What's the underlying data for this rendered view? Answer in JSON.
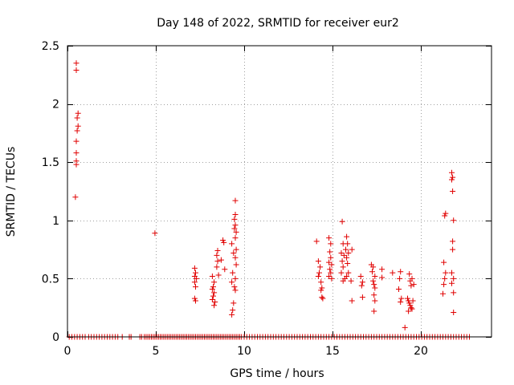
{
  "chart_data": {
    "type": "scatter",
    "title": "Day 148 of 2022, SRMTID for receiver eur2",
    "xlabel": "GPS time / hours",
    "ylabel": "SRMTID / TECUs",
    "xlim": [
      0,
      24
    ],
    "ylim": [
      0,
      2.5
    ],
    "x_ticks": [
      0,
      5,
      10,
      15,
      20
    ],
    "y_ticks": [
      0,
      0.5,
      1,
      1.5,
      2,
      2.5
    ],
    "x_tick_labels": [
      "0",
      "5",
      "10",
      "15",
      "20"
    ],
    "y_tick_labels": [
      "0",
      "0.5",
      "1",
      "1.5",
      "2",
      "2.5"
    ],
    "grid": true,
    "marker": "+",
    "series": [
      {
        "name": "eur2",
        "color": "#e00000",
        "nonzero_points": [
          [
            0.5,
            2.35
          ],
          [
            0.5,
            2.29
          ],
          [
            0.6,
            1.92
          ],
          [
            0.55,
            1.88
          ],
          [
            0.6,
            1.81
          ],
          [
            0.55,
            1.77
          ],
          [
            0.5,
            1.68
          ],
          [
            0.5,
            1.58
          ],
          [
            0.5,
            1.51
          ],
          [
            0.5,
            1.48
          ],
          [
            0.45,
            1.2
          ],
          [
            4.95,
            0.89
          ],
          [
            7.2,
            0.59
          ],
          [
            7.25,
            0.55
          ],
          [
            7.2,
            0.52
          ],
          [
            7.3,
            0.5
          ],
          [
            7.2,
            0.47
          ],
          [
            7.25,
            0.43
          ],
          [
            7.2,
            0.33
          ],
          [
            7.25,
            0.31
          ],
          [
            8.2,
            0.52
          ],
          [
            8.3,
            0.47
          ],
          [
            8.25,
            0.43
          ],
          [
            8.2,
            0.41
          ],
          [
            8.3,
            0.38
          ],
          [
            8.25,
            0.35
          ],
          [
            8.2,
            0.32
          ],
          [
            8.35,
            0.3
          ],
          [
            8.3,
            0.27
          ],
          [
            8.5,
            0.74
          ],
          [
            8.45,
            0.7
          ],
          [
            8.5,
            0.65
          ],
          [
            8.45,
            0.6
          ],
          [
            8.55,
            0.53
          ],
          [
            8.8,
            0.83
          ],
          [
            8.85,
            0.81
          ],
          [
            8.7,
            0.66
          ],
          [
            8.9,
            0.58
          ],
          [
            9.3,
            0.8
          ],
          [
            9.4,
            0.72
          ],
          [
            9.35,
            0.55
          ],
          [
            9.3,
            0.47
          ],
          [
            9.45,
            0.43
          ],
          [
            9.5,
            0.4
          ],
          [
            9.4,
            0.29
          ],
          [
            9.35,
            0.23
          ],
          [
            9.3,
            0.19
          ],
          [
            9.5,
            1.17
          ],
          [
            9.5,
            1.05
          ],
          [
            9.45,
            1.01
          ],
          [
            9.5,
            0.96
          ],
          [
            9.45,
            0.93
          ],
          [
            9.55,
            0.9
          ],
          [
            9.5,
            0.85
          ],
          [
            9.55,
            0.75
          ],
          [
            9.5,
            0.68
          ],
          [
            9.55,
            0.62
          ],
          [
            9.5,
            0.5
          ],
          [
            14.1,
            0.82
          ],
          [
            14.2,
            0.65
          ],
          [
            14.3,
            0.6
          ],
          [
            14.25,
            0.55
          ],
          [
            14.2,
            0.52
          ],
          [
            14.35,
            0.47
          ],
          [
            14.4,
            0.42
          ],
          [
            14.35,
            0.4
          ],
          [
            14.4,
            0.34
          ],
          [
            14.45,
            0.33
          ],
          [
            14.8,
            0.85
          ],
          [
            14.9,
            0.8
          ],
          [
            14.85,
            0.73
          ],
          [
            14.9,
            0.68
          ],
          [
            14.8,
            0.64
          ],
          [
            14.95,
            0.62
          ],
          [
            14.85,
            0.58
          ],
          [
            14.9,
            0.55
          ],
          [
            14.8,
            0.52
          ],
          [
            14.95,
            0.5
          ],
          [
            15.55,
            0.99
          ],
          [
            15.6,
            0.8
          ],
          [
            15.5,
            0.72
          ],
          [
            15.65,
            0.7
          ],
          [
            15.55,
            0.65
          ],
          [
            15.6,
            0.6
          ],
          [
            15.5,
            0.55
          ],
          [
            15.7,
            0.5
          ],
          [
            15.6,
            0.48
          ],
          [
            15.8,
            0.86
          ],
          [
            15.85,
            0.8
          ],
          [
            15.75,
            0.75
          ],
          [
            15.9,
            0.72
          ],
          [
            15.8,
            0.68
          ],
          [
            15.85,
            0.63
          ],
          [
            15.9,
            0.55
          ],
          [
            15.8,
            0.52
          ],
          [
            16.1,
            0.75
          ],
          [
            16.05,
            0.48
          ],
          [
            16.1,
            0.31
          ],
          [
            16.6,
            0.52
          ],
          [
            16.7,
            0.47
          ],
          [
            16.65,
            0.44
          ],
          [
            16.7,
            0.34
          ],
          [
            17.2,
            0.62
          ],
          [
            17.3,
            0.6
          ],
          [
            17.25,
            0.56
          ],
          [
            17.4,
            0.52
          ],
          [
            17.3,
            0.48
          ],
          [
            17.35,
            0.45
          ],
          [
            17.4,
            0.42
          ],
          [
            17.35,
            0.36
          ],
          [
            17.4,
            0.31
          ],
          [
            17.35,
            0.22
          ],
          [
            17.8,
            0.58
          ],
          [
            17.8,
            0.51
          ],
          [
            18.4,
            0.55
          ],
          [
            18.85,
            0.56
          ],
          [
            18.8,
            0.5
          ],
          [
            18.75,
            0.41
          ],
          [
            18.9,
            0.33
          ],
          [
            18.85,
            0.3
          ],
          [
            19.1,
            0.08
          ],
          [
            19.35,
            0.54
          ],
          [
            19.4,
            0.48
          ],
          [
            19.45,
            0.44
          ],
          [
            19.5,
            0.5
          ],
          [
            19.6,
            0.45
          ],
          [
            19.25,
            0.33
          ],
          [
            19.3,
            0.31
          ],
          [
            19.35,
            0.29
          ],
          [
            19.4,
            0.27
          ],
          [
            19.45,
            0.25
          ],
          [
            19.5,
            0.24
          ],
          [
            19.55,
            0.31
          ],
          [
            19.3,
            0.22
          ],
          [
            21.3,
            0.64
          ],
          [
            21.4,
            0.55
          ],
          [
            21.35,
            0.5
          ],
          [
            21.3,
            0.45
          ],
          [
            21.25,
            0.37
          ],
          [
            21.4,
            1.06
          ],
          [
            21.35,
            1.04
          ],
          [
            21.75,
            1.41
          ],
          [
            21.8,
            1.37
          ],
          [
            21.75,
            1.35
          ],
          [
            21.8,
            1.25
          ],
          [
            21.85,
            1.0
          ],
          [
            21.8,
            0.82
          ],
          [
            21.8,
            0.75
          ],
          [
            21.75,
            0.55
          ],
          [
            21.85,
            0.5
          ],
          [
            21.75,
            0.46
          ],
          [
            21.85,
            0.38
          ],
          [
            21.85,
            0.21
          ]
        ],
        "zero_points_x": [
          0.1,
          0.25,
          0.4,
          0.55,
          0.7,
          0.85,
          1.0,
          1.2,
          1.35,
          1.5,
          1.65,
          1.8,
          1.95,
          2.1,
          2.25,
          2.4,
          2.55,
          2.7,
          2.85,
          3.1,
          3.5,
          3.6,
          4.1,
          4.2,
          4.35,
          4.45,
          4.55,
          4.65,
          4.75,
          4.85,
          4.95,
          5.05,
          5.15,
          5.25,
          5.35,
          5.45,
          5.55,
          5.65,
          5.75,
          5.85,
          5.95,
          6.05,
          6.15,
          6.25,
          6.35,
          6.45,
          6.55,
          6.65,
          6.75,
          6.85,
          6.95,
          7.05,
          7.15,
          7.25,
          7.35,
          7.45,
          7.55,
          7.65,
          7.75,
          7.85,
          7.95,
          8.05,
          8.15,
          8.25,
          8.35,
          8.45,
          8.55,
          8.65,
          8.75,
          8.85,
          8.95,
          9.05,
          9.15,
          9.25,
          9.35,
          9.45,
          9.55,
          9.65,
          9.75,
          9.85,
          10.0,
          10.15,
          10.3,
          10.45,
          10.6,
          10.75,
          10.9,
          11.05,
          11.2,
          11.35,
          11.5,
          11.65,
          11.8,
          11.95,
          12.1,
          12.25,
          12.4,
          12.55,
          12.7,
          12.85,
          13.0,
          13.15,
          13.3,
          13.45,
          13.6,
          13.75,
          13.9,
          14.05,
          14.2,
          14.35,
          14.5,
          14.65,
          14.8,
          14.95,
          15.1,
          15.25,
          15.4,
          15.55,
          15.7,
          15.85,
          16.0,
          16.15,
          16.3,
          16.45,
          16.6,
          16.75,
          16.9,
          17.05,
          17.2,
          17.35,
          17.5,
          17.65,
          17.8,
          17.95,
          18.1,
          18.25,
          18.4,
          18.55,
          18.7,
          18.85,
          19.0,
          19.15,
          19.3,
          19.45,
          19.6,
          19.75,
          19.9,
          20.05,
          20.2,
          20.35,
          20.5,
          20.65,
          20.8,
          20.95,
          21.1,
          21.25,
          21.4,
          21.55,
          21.7,
          21.85,
          22.0,
          22.15,
          22.3,
          22.45,
          22.6,
          22.75
        ]
      }
    ]
  }
}
